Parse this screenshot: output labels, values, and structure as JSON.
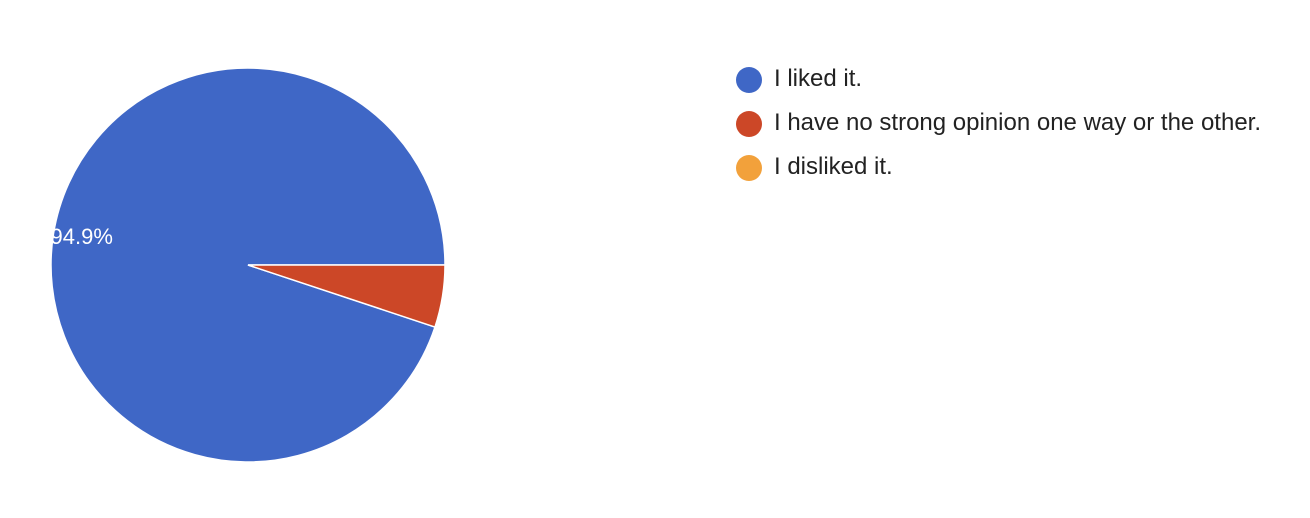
{
  "chart_data": {
    "type": "pie",
    "categories": [
      "I liked it.",
      "I have no strong opinion one way or the other.",
      "I disliked it."
    ],
    "values": [
      94.9,
      5.1,
      0
    ],
    "colors": [
      "#3F67C6",
      "#CC4727",
      "#F2A13B"
    ],
    "data_labels": [
      "94.9%",
      "",
      ""
    ],
    "legend_position": "right"
  }
}
